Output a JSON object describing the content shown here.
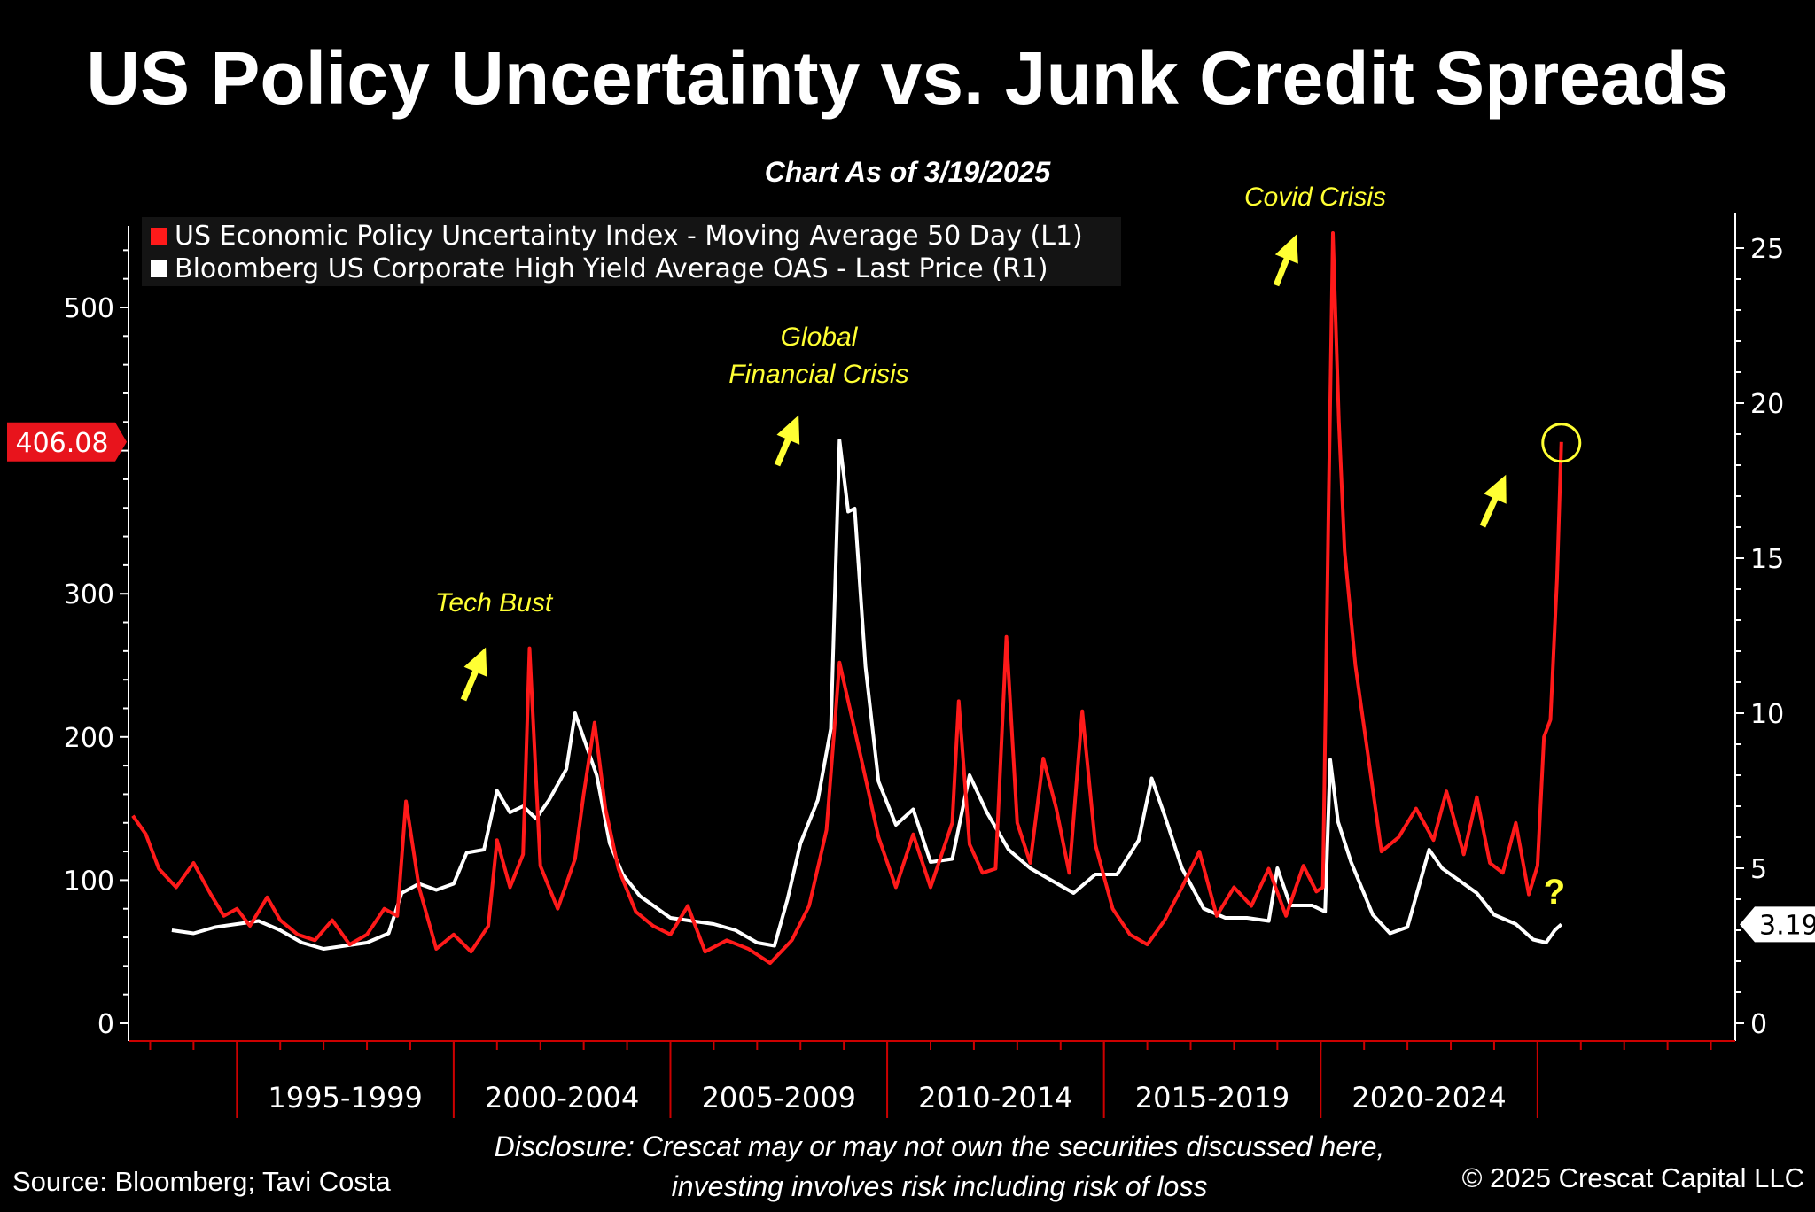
{
  "title": "US Policy Uncertainty vs. Junk Credit Spreads",
  "subtitle": "Chart As of 3/19/2025",
  "footer": {
    "source": "Source: Bloomberg; Tavi Costa",
    "disclosure_line1": "Disclosure: Crescat may or may not own the securities discussed here,",
    "disclosure_line2": "investing involves risk including risk of loss",
    "copyright": "© 2025 Crescat Capital LLC"
  },
  "colors": {
    "background": "#000000",
    "epu": "#ff1a1a",
    "hy_oas": "#ffffff",
    "annotation": "#ffff33",
    "axis_red": "#cc0000"
  },
  "chart_data": {
    "type": "line",
    "grid": false,
    "legend_position": "top-left",
    "x_range": [
      1992.5,
      2029.5
    ],
    "x_tick_labels": [
      {
        "label": "1995-1999",
        "start": 1995,
        "end": 2000
      },
      {
        "label": "2000-2004",
        "start": 2000,
        "end": 2005
      },
      {
        "label": "2005-2009",
        "start": 2005,
        "end": 2010
      },
      {
        "label": "2010-2014",
        "start": 2010,
        "end": 2015
      },
      {
        "label": "2015-2019",
        "start": 2015,
        "end": 2020
      },
      {
        "label": "2020-2024",
        "start": 2020,
        "end": 2025
      }
    ],
    "y_left": {
      "range": [
        0,
        560
      ],
      "ticks": [
        0,
        100,
        200,
        300,
        400,
        500
      ],
      "tick_labels": [
        "0",
        "100",
        "200",
        "300",
        "",
        "500"
      ],
      "last_value_label": "406.08",
      "last_value": 406.08
    },
    "y_right": {
      "range": [
        0,
        26
      ],
      "ticks": [
        0,
        5,
        10,
        15,
        20,
        25
      ],
      "tick_labels": [
        "0",
        "5",
        "10",
        "15",
        "20",
        "25"
      ],
      "last_value_label": "3.19",
      "last_value": 3.19
    },
    "series": [
      {
        "name": "US Economic Policy Uncertainty Index - Moving Average 50 Day (L1)",
        "axis": "left",
        "color": "#ff1a1a",
        "points": [
          [
            1992.6,
            145
          ],
          [
            1992.9,
            132
          ],
          [
            1993.2,
            108
          ],
          [
            1993.6,
            95
          ],
          [
            1994.0,
            112
          ],
          [
            1994.4,
            90
          ],
          [
            1994.7,
            75
          ],
          [
            1995.0,
            80
          ],
          [
            1995.3,
            68
          ],
          [
            1995.7,
            88
          ],
          [
            1996.0,
            72
          ],
          [
            1996.4,
            62
          ],
          [
            1996.8,
            58
          ],
          [
            1997.2,
            72
          ],
          [
            1997.6,
            55
          ],
          [
            1998.0,
            62
          ],
          [
            1998.4,
            80
          ],
          [
            1998.7,
            75
          ],
          [
            1998.9,
            155
          ],
          [
            1999.2,
            95
          ],
          [
            1999.6,
            52
          ],
          [
            2000.0,
            62
          ],
          [
            2000.4,
            50
          ],
          [
            2000.8,
            68
          ],
          [
            2001.0,
            128
          ],
          [
            2001.3,
            95
          ],
          [
            2001.6,
            118
          ],
          [
            2001.75,
            262
          ],
          [
            2002.0,
            110
          ],
          [
            2002.4,
            80
          ],
          [
            2002.8,
            115
          ],
          [
            2003.0,
            160
          ],
          [
            2003.25,
            210
          ],
          [
            2003.5,
            150
          ],
          [
            2003.8,
            108
          ],
          [
            2004.2,
            78
          ],
          [
            2004.6,
            68
          ],
          [
            2005.0,
            62
          ],
          [
            2005.4,
            82
          ],
          [
            2005.8,
            50
          ],
          [
            2006.3,
            58
          ],
          [
            2006.8,
            52
          ],
          [
            2007.3,
            42
          ],
          [
            2007.8,
            58
          ],
          [
            2008.2,
            82
          ],
          [
            2008.6,
            135
          ],
          [
            2008.9,
            252
          ],
          [
            2009.1,
            225
          ],
          [
            2009.4,
            185
          ],
          [
            2009.8,
            130
          ],
          [
            2010.2,
            95
          ],
          [
            2010.6,
            132
          ],
          [
            2011.0,
            95
          ],
          [
            2011.5,
            140
          ],
          [
            2011.65,
            225
          ],
          [
            2011.9,
            125
          ],
          [
            2012.2,
            105
          ],
          [
            2012.5,
            108
          ],
          [
            2012.75,
            270
          ],
          [
            2013.0,
            140
          ],
          [
            2013.3,
            112
          ],
          [
            2013.6,
            185
          ],
          [
            2013.9,
            150
          ],
          [
            2014.2,
            105
          ],
          [
            2014.5,
            218
          ],
          [
            2014.8,
            125
          ],
          [
            2015.2,
            80
          ],
          [
            2015.6,
            62
          ],
          [
            2016.0,
            55
          ],
          [
            2016.4,
            72
          ],
          [
            2016.8,
            95
          ],
          [
            2017.2,
            120
          ],
          [
            2017.6,
            75
          ],
          [
            2018.0,
            95
          ],
          [
            2018.4,
            82
          ],
          [
            2018.8,
            108
          ],
          [
            2019.2,
            75
          ],
          [
            2019.6,
            110
          ],
          [
            2019.9,
            92
          ],
          [
            2020.05,
            95
          ],
          [
            2020.18,
            360
          ],
          [
            2020.28,
            552
          ],
          [
            2020.42,
            420
          ],
          [
            2020.55,
            330
          ],
          [
            2020.8,
            250
          ],
          [
            2021.1,
            185
          ],
          [
            2021.4,
            120
          ],
          [
            2021.8,
            130
          ],
          [
            2022.2,
            150
          ],
          [
            2022.6,
            128
          ],
          [
            2022.9,
            162
          ],
          [
            2023.3,
            118
          ],
          [
            2023.6,
            158
          ],
          [
            2023.9,
            112
          ],
          [
            2024.2,
            105
          ],
          [
            2024.5,
            140
          ],
          [
            2024.8,
            90
          ],
          [
            2025.0,
            110
          ],
          [
            2025.15,
            200
          ],
          [
            2025.3,
            212
          ],
          [
            2025.45,
            310
          ],
          [
            2025.55,
            406.08
          ]
        ]
      },
      {
        "name": "Bloomberg US Corporate High Yield Average OAS - Last Price (R1)",
        "axis": "right",
        "color": "#ffffff",
        "points": [
          [
            1993.5,
            3.0
          ],
          [
            1994.0,
            2.9
          ],
          [
            1994.5,
            3.1
          ],
          [
            1995.0,
            3.2
          ],
          [
            1995.5,
            3.3
          ],
          [
            1996.0,
            3.0
          ],
          [
            1996.5,
            2.6
          ],
          [
            1997.0,
            2.4
          ],
          [
            1997.5,
            2.5
          ],
          [
            1998.0,
            2.6
          ],
          [
            1998.5,
            2.9
          ],
          [
            1998.8,
            4.2
          ],
          [
            1999.2,
            4.5
          ],
          [
            1999.6,
            4.3
          ],
          [
            2000.0,
            4.5
          ],
          [
            2000.3,
            5.5
          ],
          [
            2000.7,
            5.6
          ],
          [
            2001.0,
            7.5
          ],
          [
            2001.3,
            6.8
          ],
          [
            2001.6,
            7.0
          ],
          [
            2001.9,
            6.6
          ],
          [
            2002.2,
            7.2
          ],
          [
            2002.6,
            8.2
          ],
          [
            2002.8,
            10.0
          ],
          [
            2003.0,
            9.2
          ],
          [
            2003.3,
            8.0
          ],
          [
            2003.6,
            5.8
          ],
          [
            2003.9,
            4.8
          ],
          [
            2004.3,
            4.1
          ],
          [
            2004.7,
            3.7
          ],
          [
            2005.0,
            3.4
          ],
          [
            2005.5,
            3.3
          ],
          [
            2006.0,
            3.2
          ],
          [
            2006.5,
            3.0
          ],
          [
            2007.0,
            2.6
          ],
          [
            2007.4,
            2.5
          ],
          [
            2007.7,
            4.0
          ],
          [
            2008.0,
            5.8
          ],
          [
            2008.4,
            7.2
          ],
          [
            2008.7,
            9.5
          ],
          [
            2008.9,
            18.8
          ],
          [
            2009.1,
            16.5
          ],
          [
            2009.25,
            16.6
          ],
          [
            2009.5,
            11.5
          ],
          [
            2009.8,
            7.8
          ],
          [
            2010.2,
            6.4
          ],
          [
            2010.6,
            6.9
          ],
          [
            2011.0,
            5.2
          ],
          [
            2011.5,
            5.3
          ],
          [
            2011.9,
            8.0
          ],
          [
            2012.3,
            6.8
          ],
          [
            2012.8,
            5.6
          ],
          [
            2013.3,
            5.0
          ],
          [
            2013.8,
            4.6
          ],
          [
            2014.3,
            4.2
          ],
          [
            2014.8,
            4.8
          ],
          [
            2015.3,
            4.8
          ],
          [
            2015.8,
            5.9
          ],
          [
            2016.1,
            7.9
          ],
          [
            2016.4,
            6.7
          ],
          [
            2016.8,
            5.0
          ],
          [
            2017.3,
            3.7
          ],
          [
            2017.8,
            3.4
          ],
          [
            2018.3,
            3.4
          ],
          [
            2018.8,
            3.3
          ],
          [
            2019.0,
            5.0
          ],
          [
            2019.3,
            3.8
          ],
          [
            2019.8,
            3.8
          ],
          [
            2020.1,
            3.6
          ],
          [
            2020.22,
            8.5
          ],
          [
            2020.4,
            6.5
          ],
          [
            2020.7,
            5.2
          ],
          [
            2021.2,
            3.5
          ],
          [
            2021.6,
            2.9
          ],
          [
            2022.0,
            3.1
          ],
          [
            2022.5,
            5.6
          ],
          [
            2022.8,
            5.0
          ],
          [
            2023.2,
            4.6
          ],
          [
            2023.6,
            4.2
          ],
          [
            2024.0,
            3.5
          ],
          [
            2024.5,
            3.2
          ],
          [
            2024.9,
            2.7
          ],
          [
            2025.2,
            2.6
          ],
          [
            2025.4,
            3.0
          ],
          [
            2025.55,
            3.19
          ]
        ]
      }
    ],
    "annotations": [
      {
        "text": "Tech Bust",
        "x": 2001.75,
        "y": 262
      },
      {
        "text": "Global",
        "text2": "Financial Crisis",
        "x": 2008.95,
        "y": 395
      },
      {
        "text": "Covid Crisis",
        "x": 2020.28,
        "y": 552
      },
      {
        "text": "?",
        "x": 2026.3,
        "y": 85
      }
    ]
  }
}
